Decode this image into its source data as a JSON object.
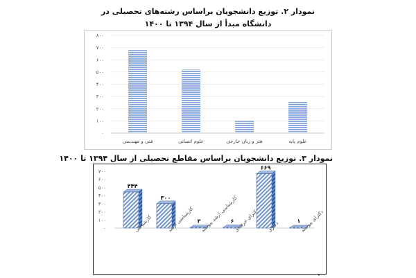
{
  "titles": {
    "chart1_line1": "نمودار ۲. توزیع دانشجویان براساس رشته‌های تحصیلی در",
    "chart1_line2": "دانشگاه مبدأ از سال ۱۳۹۴ تا ۱۴۰۰",
    "chart2": "نمودار ۳. توزیع دانشجویان براساس مقاطع تحصیلی از سال ۱۳۹۴ تا ۱۴۰۰"
  },
  "colors": {
    "bar_fill": "#8FAADC",
    "bar_stripe": "#ffffff",
    "bar_dark": "#2F5597",
    "grid": "#d9d9d9"
  },
  "chart_data": [
    {
      "type": "bar",
      "title": "نمودار ۲. توزیع دانشجویان براساس رشته‌های تحصیلی در دانشگاه مبدأ از سال ۱۳۹۴ تا ۱۴۰۰",
      "categories": [
        "فنی و مهندسی",
        "علوم انسانی",
        "هنر و زبان خارجی",
        "علوم پایه"
      ],
      "values": [
        680,
        520,
        100,
        255
      ],
      "ylim": [
        0,
        800
      ],
      "yticks": [
        "۰",
        "۱۰۰",
        "۲۰۰",
        "۳۰۰",
        "۴۰۰",
        "۵۰۰",
        "۶۰۰",
        "۷۰۰",
        "۸۰۰"
      ],
      "grid": true,
      "style": "horizontal-striped"
    },
    {
      "type": "bar",
      "title": "نمودار ۳. توزیع دانشجویان براساس مقاطع تحصیلی از سال ۱۳۹۴ تا ۱۴۰۰",
      "categories": [
        "کارشناسی",
        "کارشناسی ارشد",
        "کارشناسی ارشد پیوسته",
        "دکترای حرفه‌ای",
        "دکتری",
        "دکترای پیوسته"
      ],
      "values": [
        444,
        300,
        3,
        6,
        669,
        1
      ],
      "data_labels": [
        "۴۴۴",
        "۳۰۰",
        "۳",
        "۶",
        "۶۶۹",
        "۱"
      ],
      "ylim": [
        0,
        700
      ],
      "yticks": [
        "۰",
        "۱۰۰",
        "۲۰۰",
        "۳۰۰",
        "۴۰۰",
        "۵۰۰",
        "۶۰۰",
        "۷۰۰"
      ],
      "grid": false,
      "style": "3d-diagonal-hatch"
    }
  ]
}
